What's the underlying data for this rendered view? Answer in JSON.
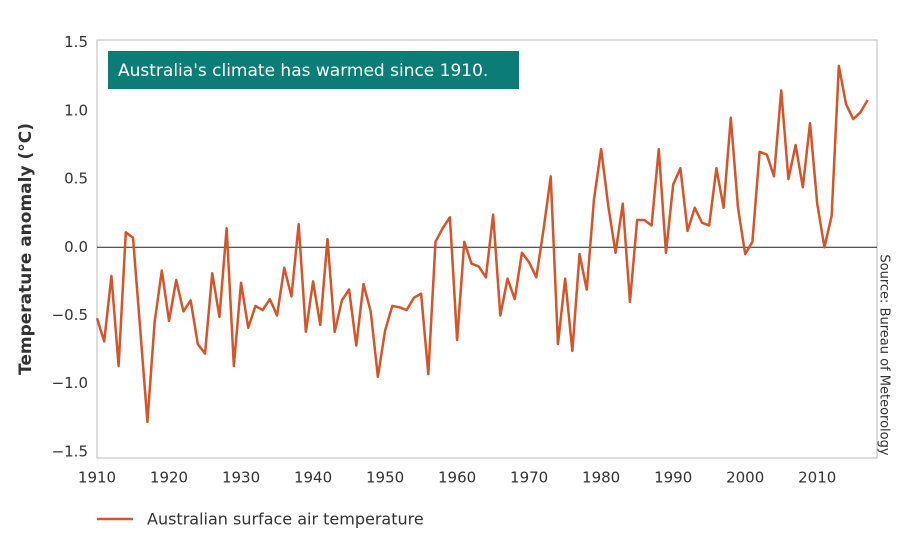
{
  "chart_data": {
    "type": "line",
    "annotation": "Australia's climate has warmed since 1910.",
    "y_label": "Temperature anomaly (°C)",
    "source": "Source: Bureau of Meteorology",
    "x": [
      1910,
      1911,
      1912,
      1913,
      1914,
      1915,
      1916,
      1917,
      1918,
      1919,
      1920,
      1921,
      1922,
      1923,
      1924,
      1925,
      1926,
      1927,
      1928,
      1929,
      1930,
      1931,
      1932,
      1933,
      1934,
      1935,
      1936,
      1937,
      1938,
      1939,
      1940,
      1941,
      1942,
      1943,
      1944,
      1945,
      1946,
      1947,
      1948,
      1949,
      1950,
      1951,
      1952,
      1953,
      1954,
      1955,
      1956,
      1957,
      1958,
      1959,
      1960,
      1961,
      1962,
      1963,
      1964,
      1965,
      1966,
      1967,
      1968,
      1969,
      1970,
      1971,
      1972,
      1973,
      1974,
      1975,
      1976,
      1977,
      1978,
      1979,
      1980,
      1981,
      1982,
      1983,
      1984,
      1985,
      1986,
      1987,
      1988,
      1989,
      1990,
      1991,
      1992,
      1993,
      1994,
      1995,
      1996,
      1997,
      1998,
      1999,
      2000,
      2001,
      2002,
      2003,
      2004,
      2005,
      2006,
      2007,
      2008,
      2009,
      2010,
      2011,
      2012,
      2013,
      2014,
      2015,
      2016,
      2017
    ],
    "series": [
      {
        "name": "Australian surface air temperature",
        "color": "#d2552b",
        "values": [
          -0.52,
          -0.69,
          -0.21,
          -0.87,
          0.11,
          0.07,
          -0.6,
          -1.28,
          -0.55,
          -0.17,
          -0.54,
          -0.24,
          -0.47,
          -0.39,
          -0.71,
          -0.78,
          -0.19,
          -0.51,
          0.14,
          -0.87,
          -0.26,
          -0.59,
          -0.43,
          -0.46,
          -0.38,
          -0.5,
          -0.15,
          -0.36,
          0.17,
          -0.62,
          -0.25,
          -0.57,
          0.06,
          -0.62,
          -0.39,
          -0.31,
          -0.72,
          -0.27,
          -0.47,
          -0.95,
          -0.61,
          -0.43,
          -0.44,
          -0.46,
          -0.37,
          -0.34,
          -0.93,
          0.04,
          0.14,
          0.22,
          -0.68,
          0.04,
          -0.12,
          -0.14,
          -0.22,
          0.24,
          -0.5,
          -0.23,
          -0.38,
          -0.04,
          -0.11,
          -0.22,
          0.13,
          0.52,
          -0.71,
          -0.23,
          -0.76,
          -0.05,
          -0.31,
          0.35,
          0.72,
          0.3,
          -0.04,
          0.32,
          -0.4,
          0.2,
          0.2,
          0.16,
          0.72,
          -0.04,
          0.46,
          0.58,
          0.12,
          0.29,
          0.18,
          0.16,
          0.58,
          0.29,
          0.95,
          0.29,
          -0.05,
          0.04,
          0.7,
          0.68,
          0.52,
          1.15,
          0.5,
          0.75,
          0.44,
          0.91,
          0.32,
          0.0,
          0.23,
          1.33,
          1.05,
          0.94,
          0.99,
          1.08
        ]
      }
    ],
    "xlim": [
      1910,
      2018.3
    ],
    "ylim": [
      -1.545,
      1.52
    ],
    "xticks": [
      1910,
      1920,
      1930,
      1940,
      1950,
      1960,
      1970,
      1980,
      1990,
      2000,
      2010
    ],
    "yticks": [
      1.5,
      {
        "value": 1.0,
        "label": "1.0"
      },
      0.5,
      {
        "value": 0.0,
        "label": "0.0"
      },
      {
        "value": -0.5,
        "label": "−0.5"
      },
      {
        "value": -1.0,
        "label": "−1.0"
      },
      {
        "value": -1.5,
        "label": "−1.5"
      }
    ],
    "grid": false,
    "zero_line": true,
    "annotation_color": "#0b7d76"
  }
}
